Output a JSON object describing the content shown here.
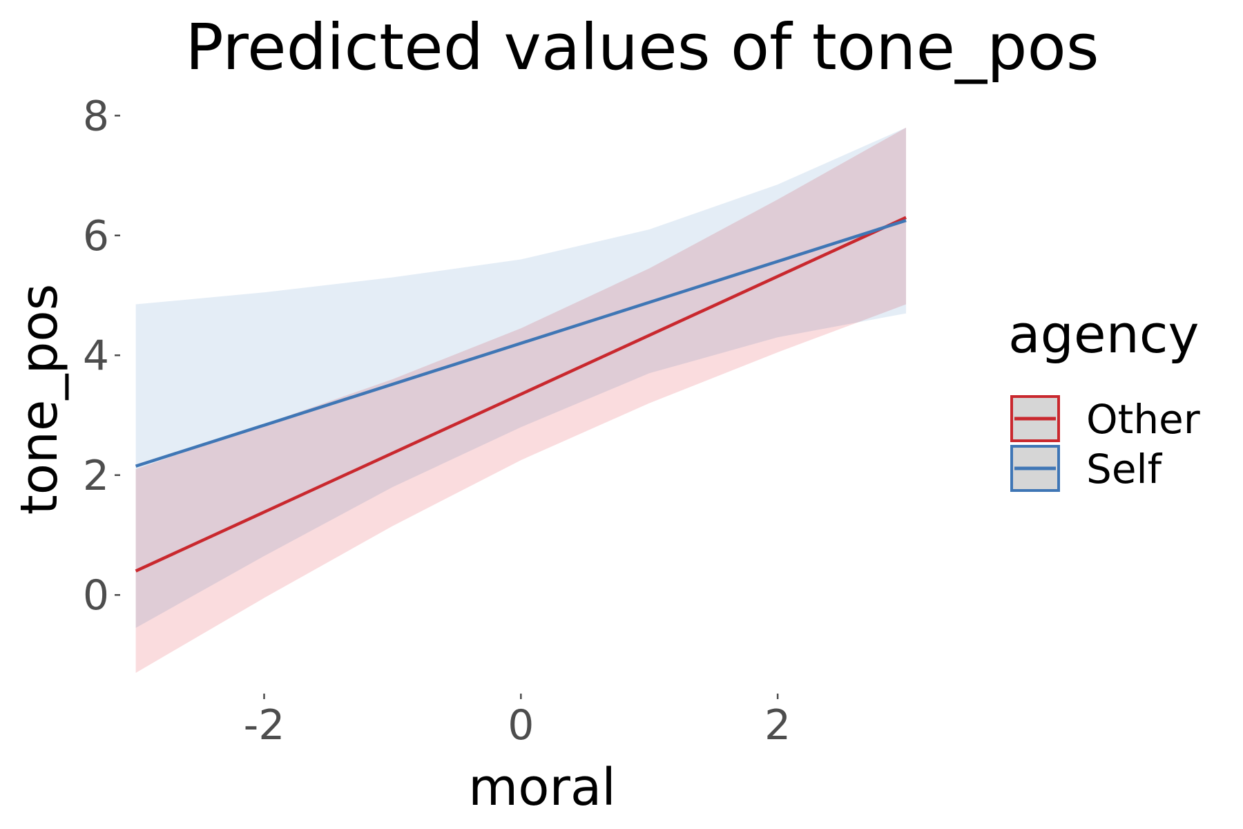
{
  "chart_data": {
    "type": "line",
    "title": "Predicted values of tone_pos",
    "xlabel": "moral",
    "ylabel": "tone_pos",
    "xlim": [
      -3.1,
      3.5
    ],
    "ylim": [
      -1.6,
      8.2
    ],
    "x_ticks": [
      -2,
      0,
      2
    ],
    "x_tick_labels": [
      "-2",
      "0",
      "2"
    ],
    "y_ticks": [
      0,
      2,
      4,
      6,
      8
    ],
    "y_tick_labels": [
      "0",
      "2",
      "4",
      "6",
      "8"
    ],
    "grid": false,
    "legend": {
      "title": "agency",
      "position": "right"
    },
    "series": [
      {
        "name": "Other",
        "color": "#c9282e",
        "fill": "#f8c9cc",
        "line": {
          "x": [
            -3,
            3
          ],
          "y": [
            0.4,
            6.3
          ]
        },
        "band": {
          "x": [
            -3,
            -2,
            -1,
            0,
            1,
            2,
            3
          ],
          "lower": [
            -1.3,
            -0.05,
            1.15,
            2.25,
            3.2,
            4.05,
            4.85
          ],
          "upper": [
            2.1,
            2.85,
            3.6,
            4.45,
            5.45,
            6.6,
            7.8
          ]
        }
      },
      {
        "name": "Self",
        "color": "#3f76b5",
        "fill": "#d6e4f1",
        "line": {
          "x": [
            -3,
            3
          ],
          "y": [
            2.15,
            6.25
          ]
        },
        "band": {
          "x": [
            -3,
            -2,
            -1,
            0,
            1,
            2,
            3
          ],
          "lower": [
            -0.55,
            0.65,
            1.8,
            2.8,
            3.7,
            4.3,
            4.7
          ],
          "upper": [
            4.85,
            5.05,
            5.3,
            5.6,
            6.1,
            6.85,
            7.8
          ]
        }
      }
    ]
  }
}
